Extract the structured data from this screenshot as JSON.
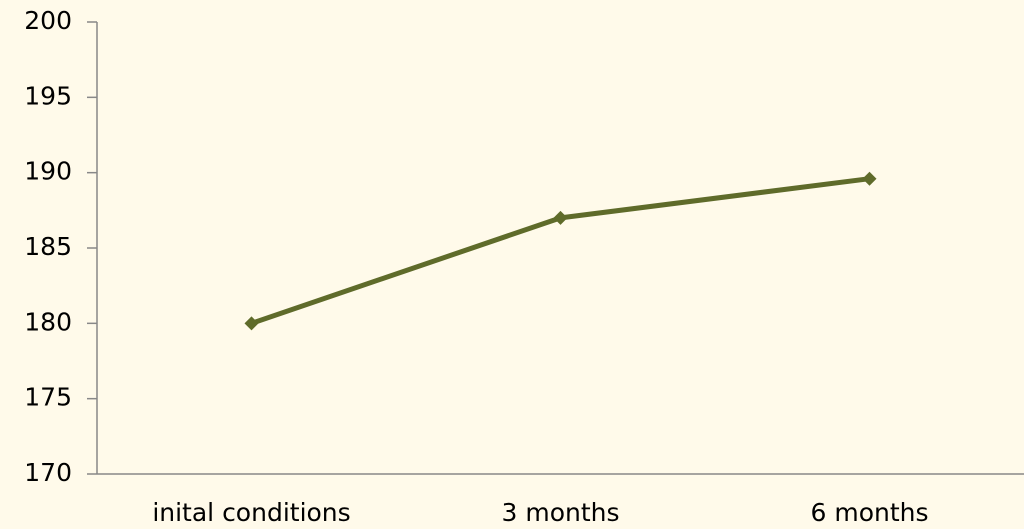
{
  "chart_data": {
    "type": "line",
    "categories": [
      "inital conditions",
      "3 months",
      "6 months"
    ],
    "series": [
      {
        "color": "#5f6b2a",
        "values": [
          180,
          187,
          189.6
        ]
      }
    ],
    "ylim": [
      170,
      200
    ],
    "yticks": [
      170,
      175,
      180,
      185,
      190,
      195,
      200
    ],
    "grid": false
  }
}
